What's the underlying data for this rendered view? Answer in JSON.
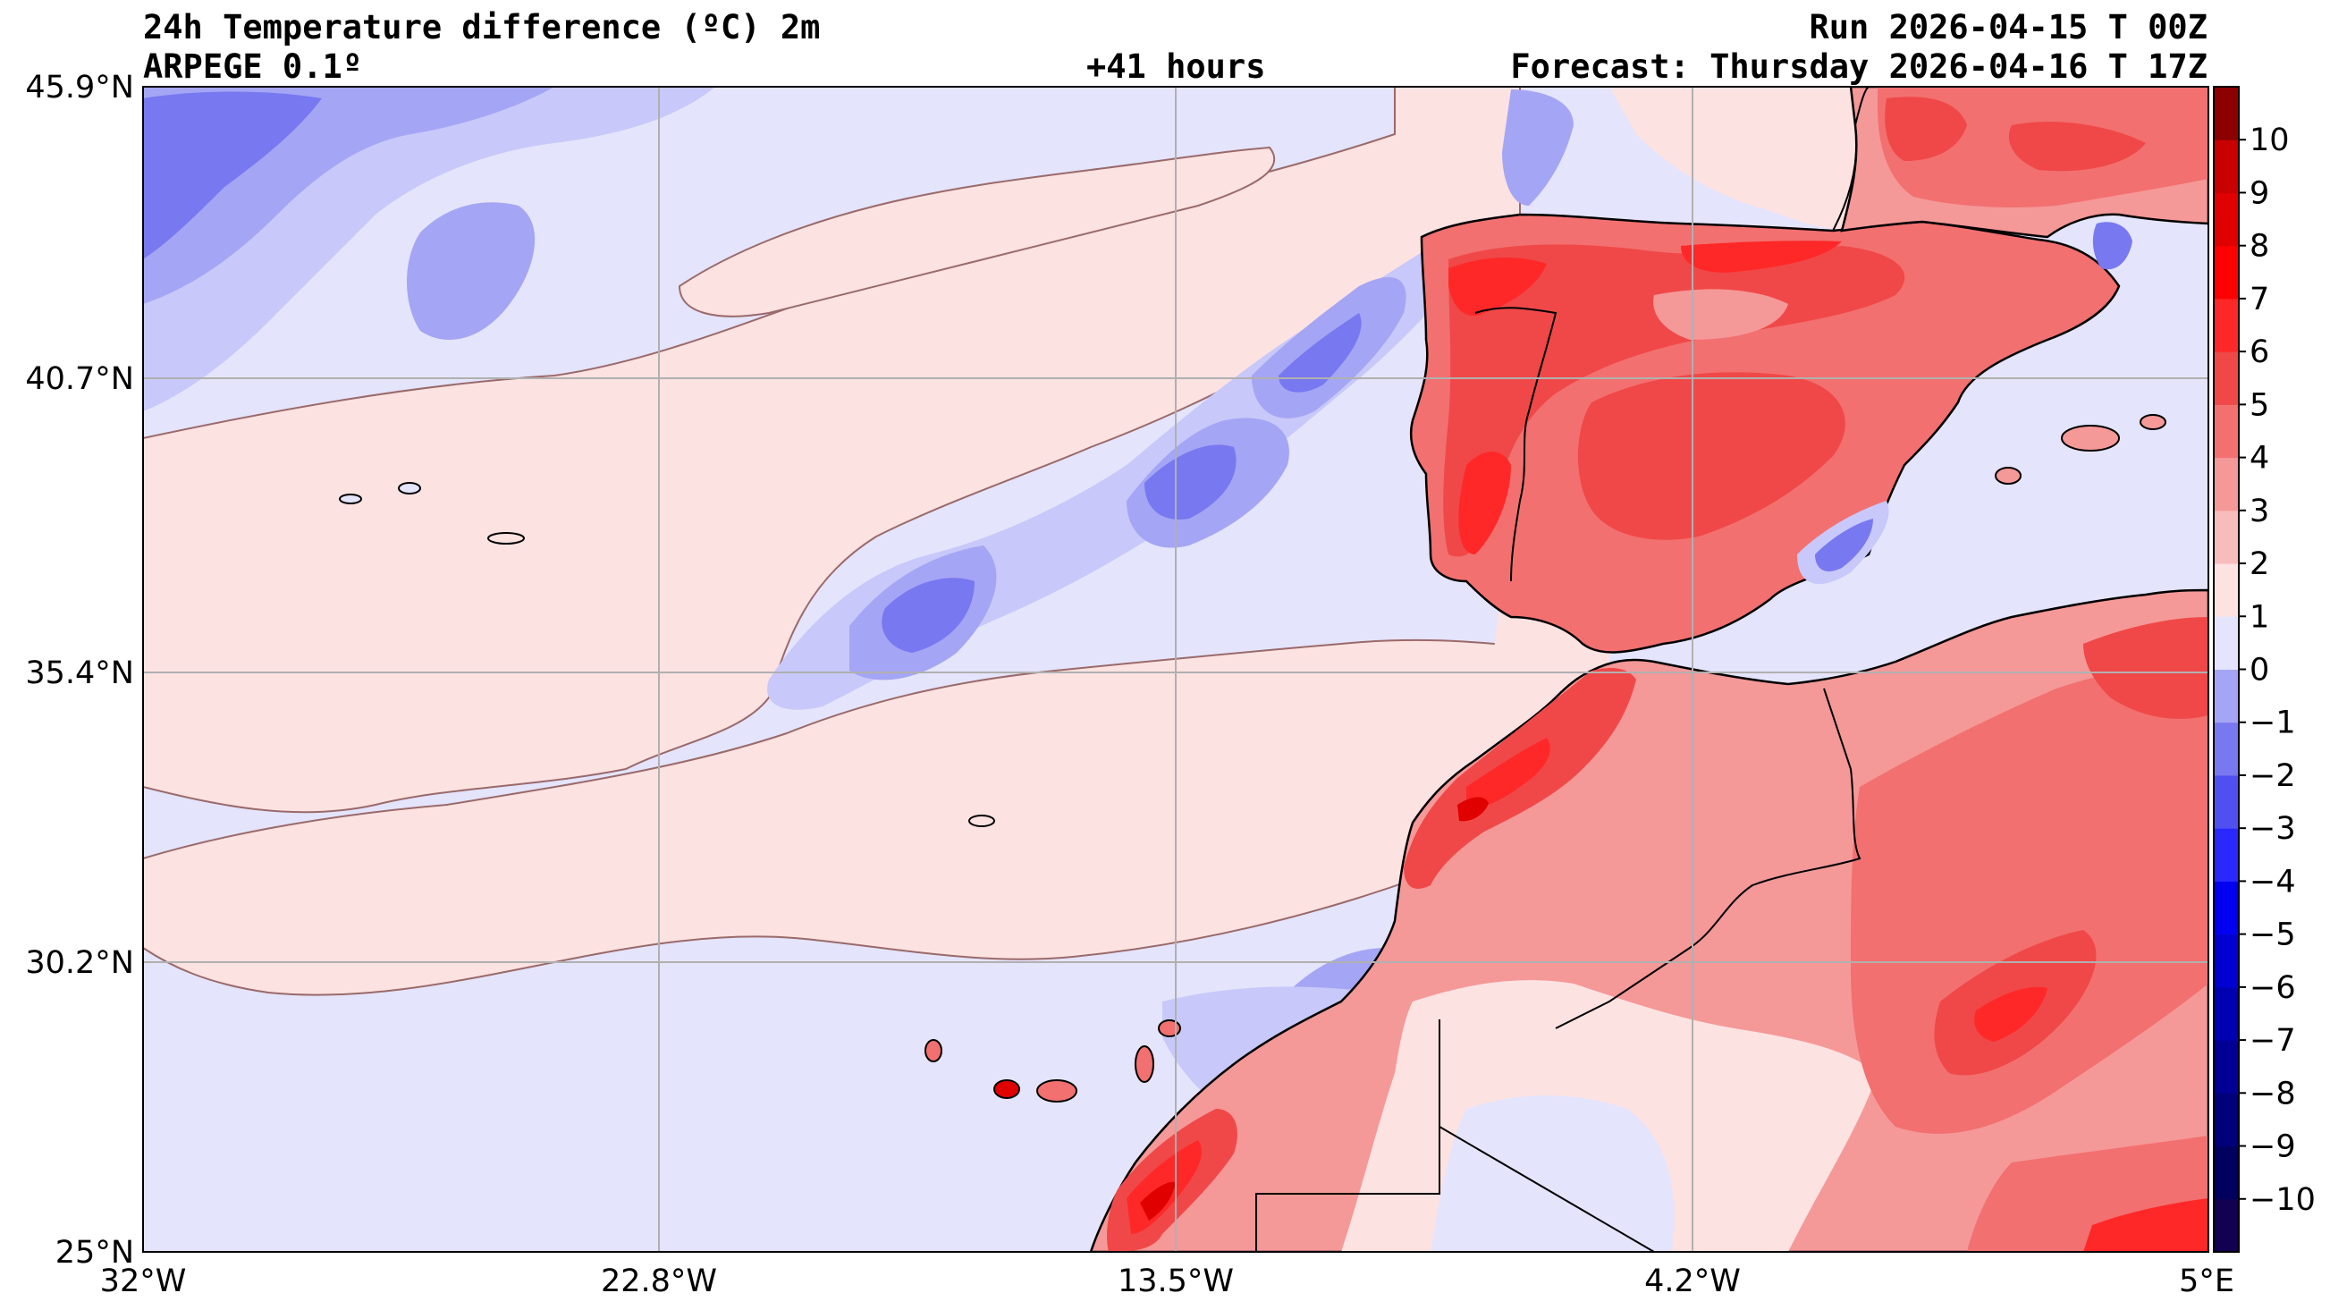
{
  "header": {
    "title": "24h Temperature difference (ºC) 2m",
    "model": "ARPEGE 0.1º",
    "lead": "+41 hours",
    "run": "Run 2026-04-15 T 00Z",
    "forecast": "Forecast: Thursday 2026-04-16 T 17Z"
  },
  "axes": {
    "x_ticks": [
      "32°W",
      "22.8°W",
      "13.5°W",
      "4.2°W",
      "5°E"
    ],
    "y_ticks": [
      "45.9°N",
      "40.7°N",
      "35.4°N",
      "30.2°N",
      "25°N"
    ]
  },
  "colorbar": {
    "labels": [
      "10",
      "9",
      "8",
      "7",
      "6",
      "5",
      "4",
      "3",
      "2",
      "1",
      "0",
      "−1",
      "−2",
      "−3",
      "−4",
      "−5",
      "−6",
      "−7",
      "−8",
      "−9",
      "−10"
    ],
    "colors": [
      "#120050",
      "#00005e",
      "#00007a",
      "#000095",
      "#0000b3",
      "#0000d0",
      "#0000f0",
      "#2828ff",
      "#5050f0",
      "#7878f0",
      "#a5a5f5",
      "#c8c8fa",
      "#e4e4fc",
      "#fde2e2",
      "#f8bcbc",
      "#f59898",
      "#f27070",
      "#f04848",
      "#ff2828",
      "#ff0000",
      "#e00000",
      "#c80000",
      "#aa0000",
      "#8c0000",
      "#6e0000"
    ],
    "levels_from_bottom": [
      "-11",
      "-10",
      "-9",
      "-8",
      "-7",
      "-6",
      "-5",
      "-4",
      "-3",
      "-2",
      "-1",
      "0",
      "1",
      "2",
      "3",
      "4",
      "5",
      "6",
      "7",
      "8",
      "9",
      "10",
      "11"
    ]
  },
  "palette": {
    "ocean_neg_light": "#e4e4fc",
    "ocean_pos_light": "#fde2e2",
    "neg_1": "#c8c8fa",
    "neg_2": "#a5a5f5",
    "neg_3": "#7878f0",
    "neg_4": "#5050f0",
    "pos_1": "#f8bcbc",
    "pos_2": "#f59898",
    "pos_3": "#f27070",
    "pos_4": "#f04848",
    "pos_5": "#ff2828",
    "pos_6": "#e00000",
    "gridline": "#b0b0b0",
    "coastline": "#000000"
  }
}
